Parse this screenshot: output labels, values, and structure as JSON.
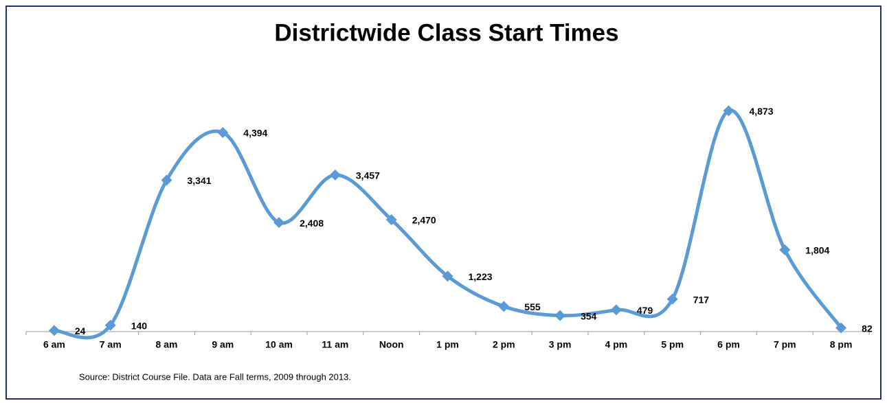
{
  "chart_data": {
    "type": "line",
    "title": "Districtwide Class Start Times",
    "source": "Source:  District Course File.  Data are Fall terms, 2009 through 2013.",
    "categories": [
      "6 am",
      "7 am",
      "8 am",
      "9 am",
      "10 am",
      "11 am",
      "Noon",
      "1 pm",
      "2 pm",
      "3 pm",
      "4 pm",
      "5 pm",
      "6 pm",
      "7 pm",
      "8 pm"
    ],
    "series": [
      {
        "color": "#5b9bd5",
        "values": [
          24,
          140,
          3341,
          4394,
          2408,
          3457,
          2470,
          1223,
          555,
          354,
          479,
          717,
          4873,
          1804,
          82
        ],
        "value_labels": [
          "24",
          "140",
          "3,341",
          "4,394",
          "2,408",
          "3,457",
          "2,470",
          "1,223",
          "555",
          "354",
          "479",
          "717",
          "4,873",
          "1,804",
          "82"
        ]
      }
    ],
    "ylim": [
      0,
      5000
    ]
  }
}
